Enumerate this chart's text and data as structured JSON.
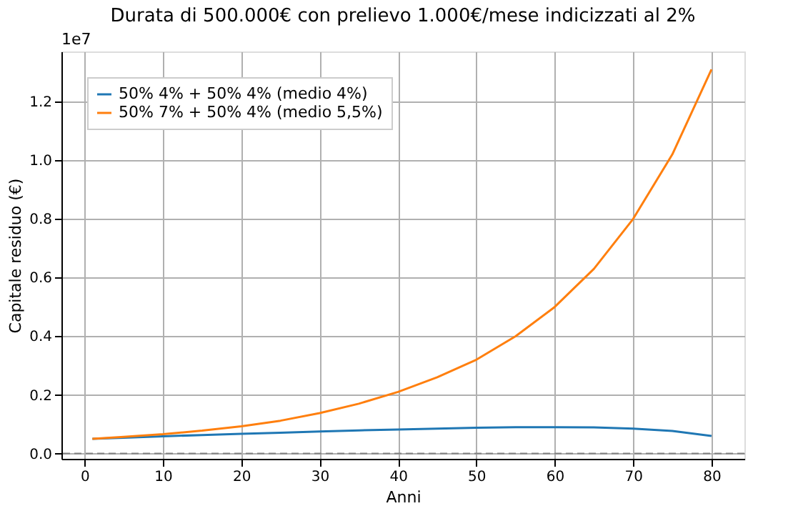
{
  "chart_data": {
    "type": "line",
    "title": "Durata di 500.000€ con prelievo 1.000€/mese indicizzati al 2%",
    "xlabel": "Anni",
    "ylabel": "Capitale residuo (€)",
    "annotations": [
      "1e7"
    ],
    "series": [
      {
        "name": "50% 4% + 50% 4% (medio 4%)",
        "color": "#1f77b4",
        "x": [
          1,
          5,
          10,
          15,
          20,
          25,
          30,
          35,
          40,
          45,
          50,
          55,
          60,
          65,
          70,
          75,
          80
        ],
        "values": [
          0.05,
          0.054,
          0.059,
          0.063,
          0.067,
          0.071,
          0.075,
          0.079,
          0.082,
          0.085,
          0.088,
          0.09,
          0.09,
          0.089,
          0.085,
          0.077,
          0.06
        ]
      },
      {
        "name": "50% 7% + 50% 4% (medio 5,5%)",
        "color": "#ff7f0e",
        "x": [
          1,
          5,
          10,
          15,
          20,
          25,
          30,
          35,
          40,
          45,
          50,
          55,
          60,
          65,
          70,
          75,
          80
        ],
        "values": [
          0.05,
          0.057,
          0.066,
          0.078,
          0.093,
          0.112,
          0.138,
          0.17,
          0.21,
          0.26,
          0.32,
          0.4,
          0.5,
          0.63,
          0.8,
          1.02,
          1.31
        ]
      }
    ],
    "xlim": [
      -2.95,
      84.2
    ],
    "ylim": [
      -0.018,
      1.371
    ],
    "xticks": [
      0,
      10,
      20,
      30,
      40,
      50,
      60,
      70,
      80
    ],
    "yticks": [
      {
        "value": 0,
        "label": "0.0"
      },
      {
        "value": 0.2,
        "label": "0.2"
      },
      {
        "value": 0.4,
        "label": "0.4"
      },
      {
        "value": 0.6,
        "label": "0.6"
      },
      {
        "value": 0.8,
        "label": "0.8"
      },
      {
        "value": 1.0,
        "label": "1.0"
      },
      {
        "value": 1.2,
        "label": "1.2"
      }
    ],
    "ref_lines": [
      {
        "axis": "y",
        "value": 0,
        "color": "#808080",
        "line_style": "dashed"
      }
    ],
    "grid": true,
    "legend": "top left",
    "marker": "none",
    "line_style": "solid"
  }
}
